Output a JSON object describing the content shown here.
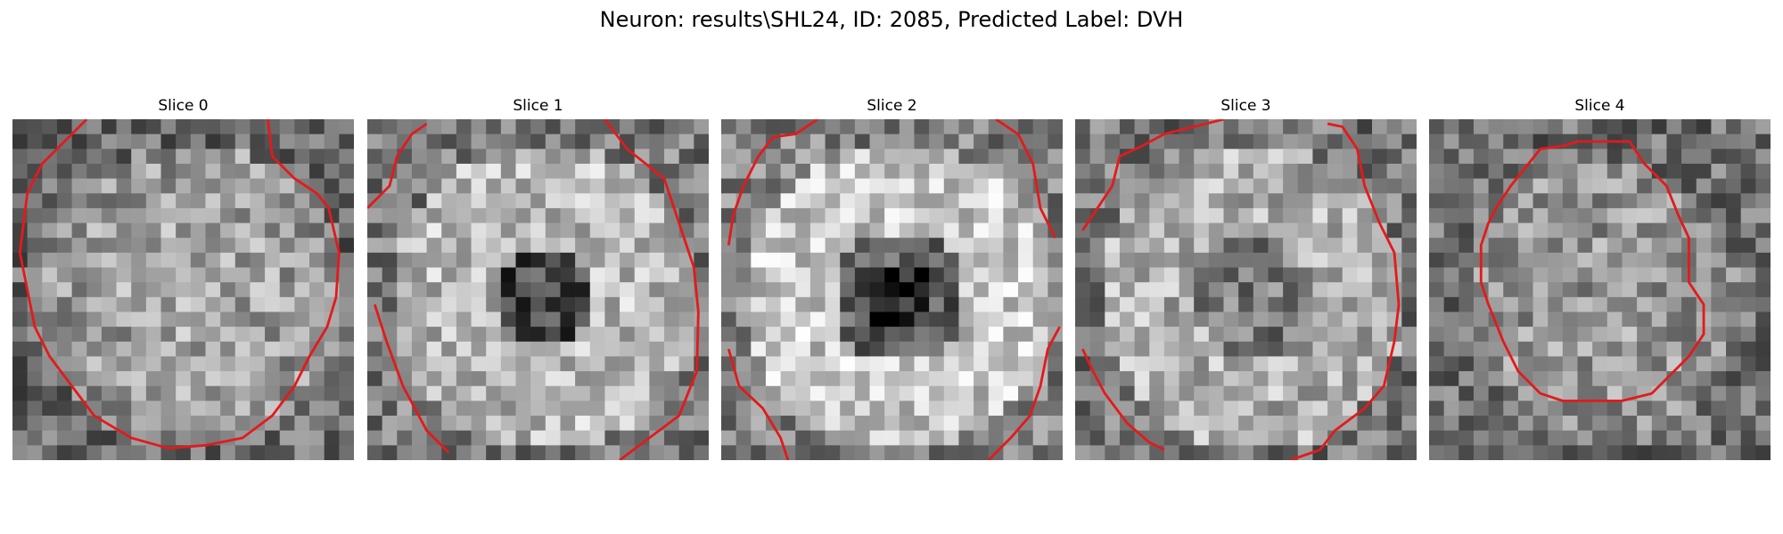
{
  "figure": {
    "title": "Neuron: results\\SHL24, ID: 2085, Predicted Label: DVH"
  },
  "slices": [
    {
      "title": "Slice 0",
      "seed": 11,
      "profile": "soma-bright"
    },
    {
      "title": "Slice 1",
      "seed": 23,
      "profile": "dark-core"
    },
    {
      "title": "Slice 2",
      "seed": 37,
      "profile": "dark-core-strong"
    },
    {
      "title": "Slice 3",
      "seed": 41,
      "profile": "dim-core"
    },
    {
      "title": "Slice 4",
      "seed": 59,
      "profile": "noisy"
    }
  ],
  "image": {
    "grid_cells": 23,
    "colormap": "gray",
    "contour_color": "#e31a1c"
  }
}
